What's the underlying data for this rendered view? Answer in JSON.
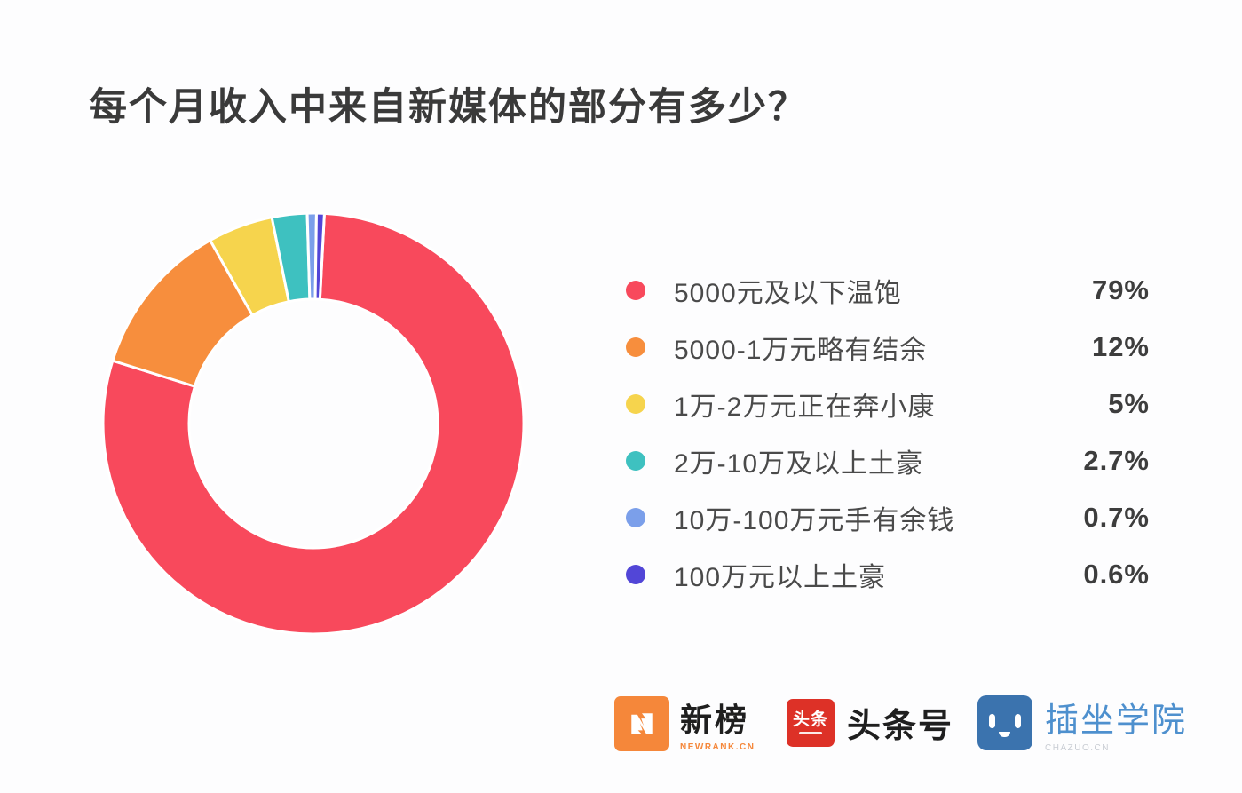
{
  "title": "每个月收入中来自新媒体的部分有多少？",
  "chart_data": {
    "type": "pie",
    "subtype": "donut",
    "title": "每个月收入中来自新媒体的部分有多少？",
    "categories": [
      "5000元及以下温饱",
      "5000-1万元略有结余",
      "1万-2万元正在奔小康",
      "2万-10万及以上土豪",
      "10万-100万元手有余钱",
      "100万元以上土豪"
    ],
    "values": [
      79,
      12,
      5,
      2.7,
      0.7,
      0.6
    ],
    "value_labels": [
      "79%",
      "12%",
      "5%",
      "2.7%",
      "0.7%",
      "0.6%"
    ],
    "colors": [
      "#F8495C",
      "#F78E3D",
      "#F6D44D",
      "#3EC1C0",
      "#7B9FEA",
      "#5246D7"
    ],
    "start_angle_deg": -87,
    "direction": "clockwise",
    "inner_radius_ratio": 0.59,
    "slice_gap_color": "#FFFFFF",
    "legend_position": "right",
    "grid": false
  },
  "footer": {
    "newrank": {
      "name": "新榜",
      "subtext": "NEWRANK.CN",
      "icon_glyph": "N",
      "icon_color": "#F5873A",
      "accent_color": "#F5873A"
    },
    "toutiao": {
      "icon_text": "头条",
      "name": "头条号",
      "icon_color": "#DD3127"
    },
    "chazuo": {
      "name": "插坐学院",
      "subtext": "CHAZUO.CN",
      "icon_color": "#3B73AE",
      "text_color": "#4E90CE"
    }
  }
}
